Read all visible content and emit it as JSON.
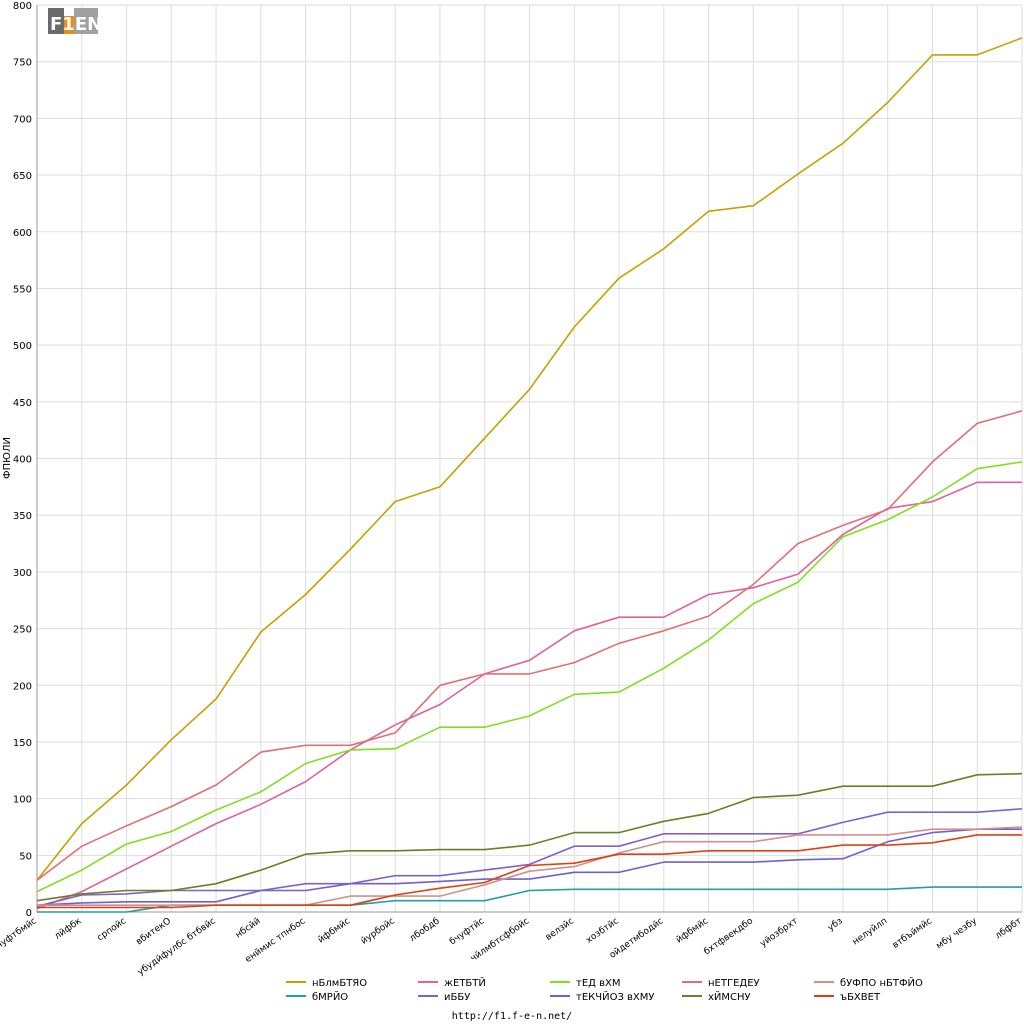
{
  "logo": {
    "text": "F1EN"
  },
  "footer": {
    "url": "http://f1.f-e-n.net/"
  },
  "colors": {
    "grid": "#dddddd",
    "axis": "#999999",
    "background": "#ffffff"
  },
  "chart_data": {
    "type": "line",
    "title": "",
    "xlabel": "",
    "ylabel": "ФПЮЛИ",
    "ylim": [
      0,
      800
    ],
    "yticks": [
      0,
      50,
      100,
      150,
      200,
      250,
      300,
      350,
      400,
      450,
      500,
      550,
      600,
      650,
      700,
      750,
      800
    ],
    "grid": true,
    "legend_position": "bottom",
    "categories": [
      "бчуфтбмйс",
      "лйфбк",
      "српойс",
      "вбитекО",
      "убудйфулбс бтбвйс",
      "нбсйй",
      "енймис тпнбос",
      "йфбмйс",
      "йурбойс",
      "лбобдб",
      "бчуфтйс",
      "чйлмбтсфбойс",
      "велзйс",
      "хозбтйс",
      "ойдетмбодйс",
      "йфбмйс",
      "бхтфвекдбо",
      "уйозбрхт",
      "убз",
      "нелуйлп",
      "втбъймйс",
      "мбу чезбу",
      "лбфбт"
    ],
    "series": [
      {
        "name": "нБлмБТЯО",
        "color": "#c8a000",
        "values": [
          28,
          78,
          112,
          152,
          188,
          247,
          280,
          320,
          362,
          375,
          418,
          461,
          516,
          559,
          585,
          618,
          623,
          651,
          678,
          714,
          756,
          756,
          771
        ]
      },
      {
        "name": "бМРЙО",
        "color": "#20a0a0",
        "values": [
          0,
          0,
          0,
          6,
          6,
          6,
          6,
          6,
          10,
          10,
          10,
          19,
          20,
          20,
          20,
          20,
          20,
          20,
          20,
          20,
          22,
          22,
          22
        ]
      },
      {
        "name": "жЕТБТЙ",
        "color": "#e060a0",
        "values": [
          3,
          18,
          38,
          58,
          78,
          95,
          115,
          143,
          165,
          183,
          210,
          222,
          248,
          260,
          260,
          280,
          286,
          298,
          333,
          356,
          362,
          379,
          379
        ]
      },
      {
        "name": "иББУ",
        "color": "#8060d0",
        "values": [
          5,
          15,
          16,
          19,
          19,
          19,
          25,
          25,
          32,
          32,
          37,
          42,
          58,
          58,
          69,
          69,
          69,
          69,
          79,
          88,
          88,
          88,
          91
        ]
      },
      {
        "name": "тЕД вХМ",
        "color": "#80e020",
        "values": [
          18,
          37,
          60,
          71,
          90,
          106,
          131,
          143,
          144,
          163,
          163,
          173,
          192,
          194,
          215,
          240,
          272,
          291,
          331,
          346,
          366,
          391,
          397
        ]
      },
      {
        "name": "тЕКЧЙОЗ вХМУ",
        "color": "#7060d0",
        "values": [
          6,
          8,
          9,
          9,
          9,
          19,
          19,
          25,
          25,
          27,
          29,
          29,
          35,
          35,
          44,
          44,
          44,
          46,
          47,
          62,
          70,
          73,
          73
        ]
      },
      {
        "name": "нЕТГЕДЕУ",
        "color": "#e07070",
        "values": [
          28,
          58,
          76,
          93,
          112,
          141,
          147,
          147,
          158,
          200,
          210,
          210,
          220,
          237,
          248,
          261,
          289,
          325,
          341,
          355,
          397,
          431,
          442
        ]
      },
      {
        "name": "хЙМСНУ",
        "color": "#6a8020",
        "values": [
          10,
          16,
          19,
          19,
          25,
          37,
          51,
          54,
          54,
          55,
          55,
          59,
          70,
          70,
          80,
          87,
          101,
          103,
          111,
          111,
          111,
          121,
          122
        ]
      },
      {
        "name": "бУФПО нБТФЙО",
        "color": "#d09090",
        "values": [
          6,
          6,
          6,
          6,
          6,
          6,
          6,
          14,
          14,
          14,
          24,
          36,
          40,
          52,
          62,
          62,
          62,
          68,
          68,
          68,
          73,
          73,
          75
        ]
      },
      {
        "name": "ъБХВЕТ",
        "color": "#e04010",
        "values": [
          4,
          4,
          4,
          4,
          6,
          6,
          6,
          6,
          15,
          21,
          26,
          41,
          43,
          51,
          51,
          54,
          54,
          54,
          59,
          59,
          61,
          68,
          68
        ]
      }
    ]
  }
}
